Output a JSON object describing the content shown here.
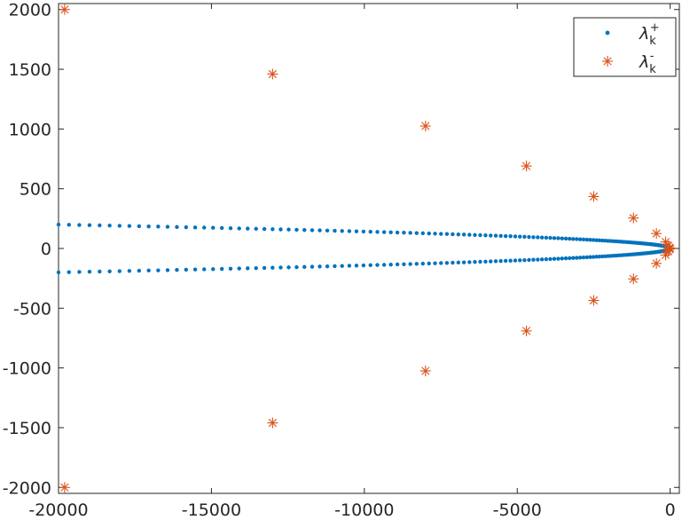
{
  "chart_data": {
    "type": "scatter",
    "title": "",
    "xlabel": "",
    "ylabel": "",
    "xlim": [
      -20000,
      300
    ],
    "ylim": [
      -2050,
      2050
    ],
    "xticks": [
      -20000,
      -15000,
      -10000,
      -5000,
      0
    ],
    "xtick_labels": [
      "-20000",
      "-15000",
      "-10000",
      "-5000",
      "0"
    ],
    "yticks": [
      -2000,
      -1500,
      -1000,
      -500,
      0,
      500,
      1000,
      1500,
      2000
    ],
    "ytick_labels": [
      "-2000",
      "-1500",
      "-1000",
      "-500",
      "0",
      "500",
      "1000",
      "1500",
      "2000"
    ],
    "grid": false,
    "legend_position": "top-right",
    "series": [
      {
        "name": "λ_k^+",
        "label_base": "λ",
        "label_sub": "k",
        "label_sup": "+",
        "marker": "dot",
        "color": "#0072BD",
        "x_range": [
          -20000,
          0
        ],
        "y_at_xmin": 200,
        "points_per_branch": 141,
        "symmetric_about_zero": true
      },
      {
        "name": "λ_k^-",
        "label_base": "λ",
        "label_sub": "k",
        "label_sup": "-",
        "marker": "asterisk",
        "color": "#D95319",
        "points": [
          [
            -19800,
            2000
          ],
          [
            -19800,
            -2000
          ],
          [
            -13000,
            1460
          ],
          [
            -13000,
            -1460
          ],
          [
            -8000,
            1025
          ],
          [
            -8000,
            -1025
          ],
          [
            -4700,
            690
          ],
          [
            -4700,
            -690
          ],
          [
            -2500,
            435
          ],
          [
            -2500,
            -435
          ],
          [
            -1200,
            255
          ],
          [
            -1200,
            -255
          ],
          [
            -450,
            125
          ],
          [
            -450,
            -125
          ],
          [
            -150,
            55
          ],
          [
            -150,
            -55
          ],
          [
            -60,
            22
          ],
          [
            -60,
            -22
          ],
          [
            -20,
            6
          ],
          [
            -20,
            -6
          ],
          [
            -5,
            0
          ]
        ]
      }
    ]
  }
}
